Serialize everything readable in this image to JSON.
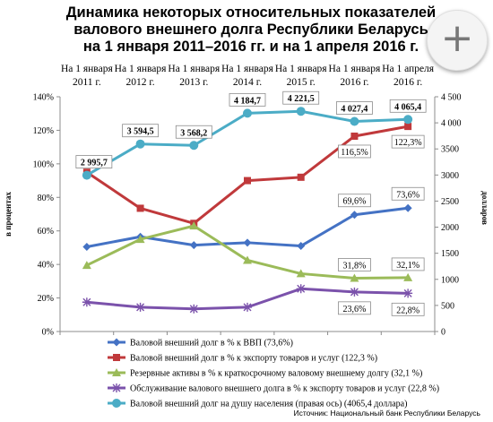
{
  "title_lines": [
    "Динамика некоторых относительных показателей",
    "валового внешнего долга Республики Беларусь",
    "на 1 января 2011–2016 гг. и на 1 апреля 2016 г."
  ],
  "source": "Источник: Национальный банк Республики Беларусь",
  "zoom_icon": "plus-icon",
  "chart_data": {
    "type": "line",
    "categories": [
      [
        "На 1 января",
        "2011 г."
      ],
      [
        "На 1 января",
        "2012 г."
      ],
      [
        "На 1 января",
        "2013 г."
      ],
      [
        "На 1 января",
        "2014 г."
      ],
      [
        "На 1 января",
        "2015 г."
      ],
      [
        "На 1 января",
        "2016 г."
      ],
      [
        "На 1 апреля",
        "2016 г."
      ]
    ],
    "ylabel_left": "в процентах",
    "ylabel_right": "долларов",
    "left_axis": {
      "min": 0,
      "max": 140,
      "step": 20,
      "suffix": "%"
    },
    "right_axis": {
      "min": 0,
      "max": 4500,
      "step": 500
    },
    "left_ticks": [
      "0%",
      "20%",
      "40%",
      "60%",
      "80%",
      "100%",
      "120%",
      "140%"
    ],
    "right_ticks": [
      "0",
      "500",
      "1000",
      "1500",
      "2000",
      "2500",
      "3000",
      "3500",
      "4 000",
      "4 500"
    ],
    "series": [
      {
        "name": "Валовой внешний долг в % к ВВП (73,6%)",
        "axis": "left",
        "color": "#4472c4",
        "marker": "diamond",
        "values": [
          50.5,
          56.5,
          51.5,
          53,
          51,
          69.6,
          73.6
        ],
        "labels": [
          null,
          null,
          null,
          null,
          null,
          "69,6%",
          "73,6%"
        ]
      },
      {
        "name": "Валовой внешний долг в % к экспорту товаров и услуг (122,3 %)",
        "axis": "left",
        "color": "#c0393b",
        "marker": "square",
        "values": [
          95,
          73.5,
          64.5,
          90,
          92,
          116.5,
          122.3
        ],
        "labels": [
          null,
          null,
          null,
          null,
          null,
          "116,5%",
          "122,3%"
        ]
      },
      {
        "name": "Резервные активы в % к краткосрочному валовому внешнему долгу (32,1 %)",
        "axis": "left",
        "color": "#9bbb59",
        "marker": "triangle",
        "values": [
          39.5,
          55,
          63,
          42.5,
          34.5,
          31.8,
          32.1
        ],
        "labels": [
          null,
          null,
          null,
          null,
          null,
          "31,8%",
          "32,1%"
        ]
      },
      {
        "name": "Обслуживание валового внешнего долга в % к экспорту товаров и услуг (22,8 %)",
        "axis": "left",
        "color": "#7b52ab",
        "marker": "star",
        "values": [
          17.5,
          14.5,
          13.5,
          14.5,
          25.5,
          23.6,
          22.8
        ],
        "labels": [
          null,
          null,
          null,
          null,
          null,
          "23,6%",
          "22,8%"
        ]
      },
      {
        "name": "Валовой внешний долг на душу населения (правая ось) (4065,4 доллара)",
        "axis": "right",
        "color": "#4bacc6",
        "marker": "circle",
        "values": [
          2995.7,
          3594.5,
          3568.2,
          4184.7,
          4221.5,
          4027.4,
          4065.4
        ],
        "labels": [
          "2 995,7",
          "3 594,5",
          "3 568,2",
          "4 184,7",
          "4 221,5",
          "4 027,4",
          "4 065,4"
        ]
      }
    ],
    "grid": false,
    "legend_placement": "bottom"
  }
}
